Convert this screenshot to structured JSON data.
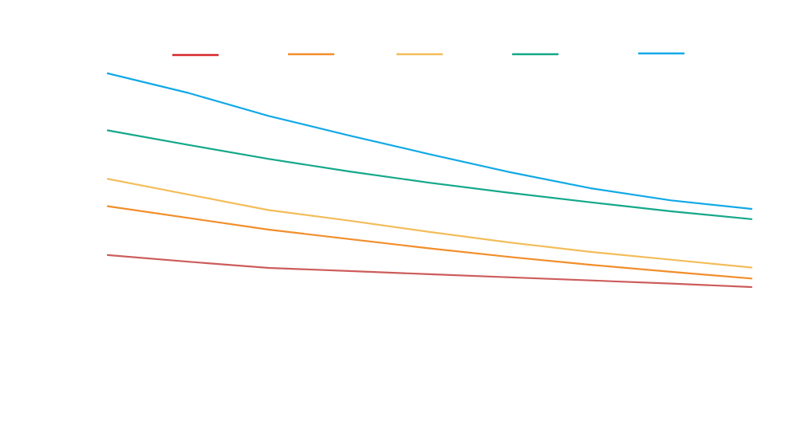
{
  "chart_data": {
    "type": "line",
    "title": "",
    "xlabel": "",
    "ylabel": "",
    "grid": false,
    "legend_position": "top",
    "x": [
      0,
      1,
      2,
      3,
      4,
      5,
      6,
      7,
      8
    ],
    "xlim": [
      0,
      8
    ],
    "ylim": [
      0,
      1
    ],
    "series": [
      {
        "color": "#cd5c5c",
        "legend_color": "#d62728",
        "values": [
          0.435,
          0.418,
          0.402,
          0.394,
          0.386,
          0.378,
          0.37,
          0.362,
          0.353
        ]
      },
      {
        "color": "#f28e2b",
        "legend_color": "#f28e2b",
        "values": [
          0.56,
          0.53,
          0.5,
          0.476,
          0.452,
          0.43,
          0.41,
          0.392,
          0.375
        ]
      },
      {
        "color": "#f3bd5a",
        "legend_color": "#f3bd5a",
        "values": [
          0.63,
          0.59,
          0.55,
          0.523,
          0.494,
          0.467,
          0.443,
          0.423,
          0.403
        ]
      },
      {
        "color": "#14a88a",
        "legend_color": "#14a88a",
        "values": [
          0.754,
          0.717,
          0.681,
          0.649,
          0.62,
          0.594,
          0.57,
          0.547,
          0.527
        ]
      },
      {
        "color": "#12a9e6",
        "legend_color": "#12a9e6",
        "values": [
          0.9,
          0.85,
          0.791,
          0.741,
          0.693,
          0.647,
          0.606,
          0.575,
          0.553
        ]
      }
    ]
  }
}
